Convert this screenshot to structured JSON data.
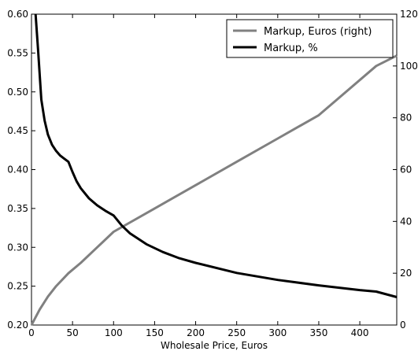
{
  "chart_data": {
    "type": "line",
    "title": "",
    "xlabel": "Wholesale Price, Euros",
    "ylabel_left": "",
    "ylabel_right": "",
    "xlim": [
      0,
      445
    ],
    "ylim_left": [
      0.2,
      0.6
    ],
    "ylim_right": [
      0,
      120
    ],
    "x_ticks": [
      "0",
      "50",
      "100",
      "150",
      "200",
      "250",
      "300",
      "350",
      "400"
    ],
    "y_left_ticks": [
      "0.20",
      "0.25",
      "0.30",
      "0.35",
      "0.40",
      "0.45",
      "0.50",
      "0.55",
      "0.60"
    ],
    "y_right_ticks": [
      "0",
      "20",
      "40",
      "60",
      "80",
      "100",
      "120"
    ],
    "grid": false,
    "legend_position": "top-right",
    "series": [
      {
        "name": "Markup, Euros (right)",
        "axis": "right",
        "color": "#808080",
        "x": [
          0,
          10,
          20,
          30,
          45,
          60,
          80,
          100,
          150,
          200,
          250,
          300,
          350,
          420,
          445
        ],
        "y": [
          0,
          6,
          11,
          15,
          20,
          24,
          30,
          36,
          45,
          54,
          63,
          72,
          81,
          100,
          104
        ]
      },
      {
        "name": "Markup, %",
        "axis": "left",
        "color": "#000000",
        "x": [
          5,
          8,
          12,
          16,
          20,
          25,
          30,
          35,
          40,
          45,
          50,
          55,
          60,
          70,
          80,
          90,
          100,
          110,
          120,
          140,
          160,
          180,
          200,
          250,
          300,
          350,
          400,
          420,
          445
        ],
        "y": [
          0.6,
          0.555,
          0.49,
          0.463,
          0.445,
          0.432,
          0.424,
          0.418,
          0.414,
          0.41,
          0.397,
          0.385,
          0.376,
          0.363,
          0.354,
          0.347,
          0.341,
          0.328,
          0.318,
          0.304,
          0.294,
          0.286,
          0.28,
          0.267,
          0.258,
          0.251,
          0.245,
          0.243,
          0.236
        ]
      }
    ]
  }
}
